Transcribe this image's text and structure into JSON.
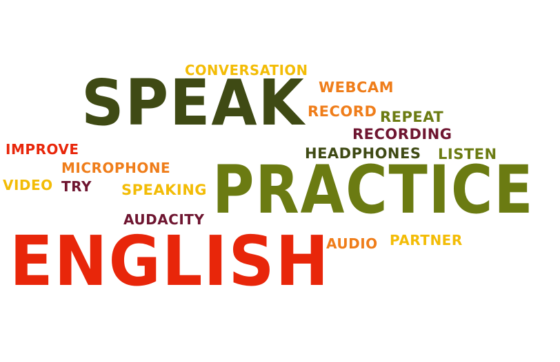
{
  "palette": {
    "dark_olive": "#3f4a14",
    "olive": "#6b7b12",
    "red": "#e8260a",
    "orange": "#ef7d1a",
    "yellow": "#f3bc06",
    "maroon": "#6e1530"
  },
  "words": {
    "speak": "SPEAK",
    "practice": "PRACTICE",
    "english": "ENGLISH",
    "conversation": "CONVERSATION",
    "webcam": "WEBCAM",
    "record": "RECORD",
    "repeat": "REPEAT",
    "recording": "RECORDING",
    "improve": "IMPROVE",
    "headphones": "HEADPHONES",
    "listen": "LISTEN",
    "microphone": "MICROPHONE",
    "video": "VIDEO",
    "try": "TRY",
    "speaking": "SPEAKING",
    "audacity": "AUDACITY",
    "audio": "AUDIO",
    "partner": "PARTNER"
  }
}
